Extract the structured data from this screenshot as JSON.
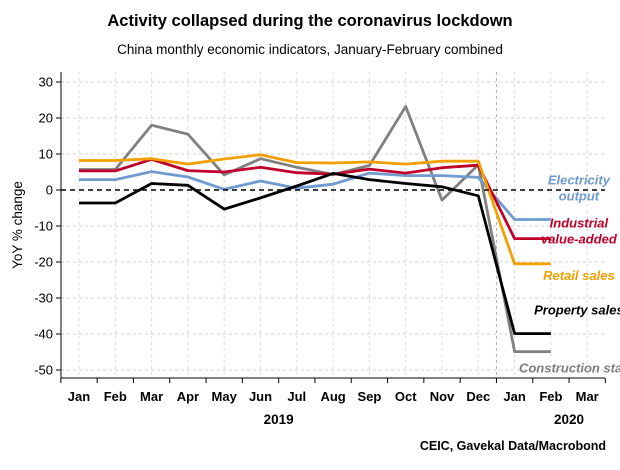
{
  "chart_data": {
    "type": "line",
    "title": "Activity collapsed during the coronavirus lockdown",
    "subtitle": "China monthly economic indicators, January-February combined",
    "ylabel": "YoY % change",
    "ylim": [
      -52,
      33
    ],
    "yticks": [
      30,
      20,
      10,
      0,
      -10,
      -20,
      -30,
      -40,
      -50
    ],
    "x_labels": [
      "Jan",
      "Feb",
      "Mar",
      "Apr",
      "May",
      "Jun",
      "Jul",
      "Aug",
      "Sep",
      "Oct",
      "Nov",
      "Dec",
      "Jan",
      "Feb",
      "Mar"
    ],
    "years": [
      {
        "label": "2019",
        "center_index": 5.5
      },
      {
        "label": "2020",
        "center_index": 13.5
      }
    ],
    "year_boundary_index": 11.5,
    "grid": true,
    "zero_line": "dashed",
    "source": "CEIC, Gavekal Data/Macrobond",
    "series": [
      {
        "name": "Construction starts",
        "color": "#808080",
        "values": [
          5.7,
          5.7,
          18.0,
          15.5,
          4.2,
          8.7,
          6.3,
          4.3,
          6.8,
          23.2,
          -2.8,
          7.0,
          -44.9,
          -44.9
        ]
      },
      {
        "name": "Electricity output",
        "color": "#6f9bd1",
        "values": [
          2.9,
          2.9,
          5.1,
          3.6,
          0.2,
          2.5,
          0.5,
          1.6,
          4.7,
          4.0,
          4.0,
          3.5,
          -8.2,
          -8.2
        ]
      },
      {
        "name": "Industrial value-added",
        "color": "#c0002a",
        "values": [
          5.3,
          5.3,
          8.5,
          5.4,
          5.0,
          6.3,
          4.8,
          4.4,
          5.8,
          4.7,
          6.2,
          6.9,
          -13.5,
          -13.5
        ]
      },
      {
        "name": "Retail sales",
        "color": "#f2a000",
        "values": [
          8.2,
          8.2,
          8.7,
          7.2,
          8.6,
          9.8,
          7.6,
          7.5,
          7.8,
          7.2,
          8.0,
          8.0,
          -20.5,
          -20.5
        ]
      },
      {
        "name": "Property sales",
        "color": "#000000",
        "values": [
          -3.6,
          -3.6,
          1.8,
          1.3,
          -5.3,
          -2.2,
          1.1,
          4.6,
          2.9,
          1.8,
          0.9,
          -1.6,
          -39.9,
          -39.9
        ]
      }
    ],
    "series_labels": [
      {
        "lines": [
          "Electricity",
          "output"
        ],
        "series": "Electricity output"
      },
      {
        "lines": [
          "Industrial",
          "value-added"
        ],
        "series": "Industrial value-added"
      },
      {
        "lines": [
          "Retail sales"
        ],
        "series": "Retail sales"
      },
      {
        "lines": [
          "Property sales"
        ],
        "series": "Property sales"
      },
      {
        "lines": [
          "Construction starts"
        ],
        "series": "Construction starts"
      }
    ]
  }
}
